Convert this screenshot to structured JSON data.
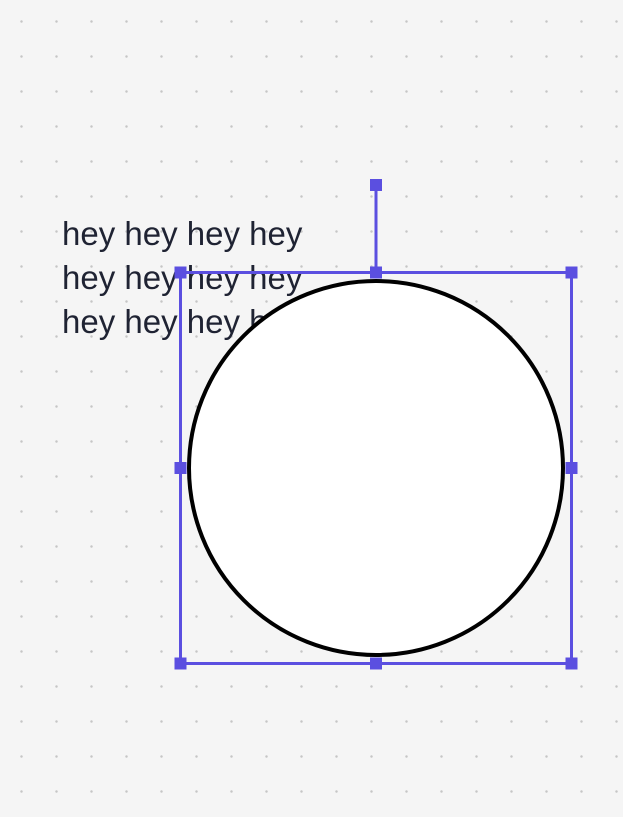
{
  "canvas": {
    "background_color": "#f5f5f5",
    "dot_color": "#c6c6c6"
  },
  "text_element": {
    "lines": [
      "hey hey hey hey",
      "hey hey hey hey",
      "hey hey hey hey"
    ],
    "color": "#1f2333"
  },
  "shape": {
    "type": "ellipse",
    "fill": "#ffffff",
    "stroke": "#000000"
  },
  "selection": {
    "color": "#5b4fe0",
    "handles": [
      "top-left",
      "top",
      "top-right",
      "right",
      "bottom-right",
      "bottom",
      "bottom-left",
      "left",
      "rotate"
    ]
  }
}
